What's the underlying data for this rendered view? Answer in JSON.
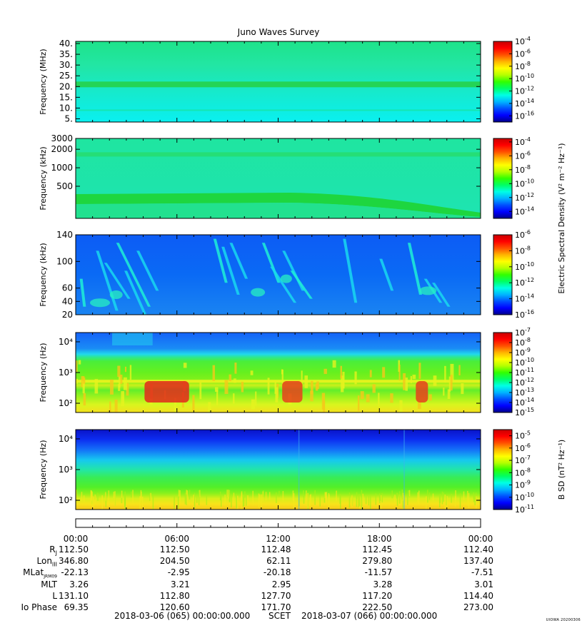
{
  "figure": {
    "title": "Juno Waves Survey",
    "credit": "UIOWA 20200306"
  },
  "colors": {
    "colormap": [
      "#00008c",
      "#0000ff",
      "#0050ff",
      "#00b4ff",
      "#00ffe6",
      "#00ff64",
      "#32ff00",
      "#b4ff00",
      "#ffff00",
      "#ffb400",
      "#ff5000",
      "#ff0000",
      "#c80000"
    ]
  },
  "chart_data": [
    {
      "type": "heatmap",
      "panel": "hfr-high",
      "ylabel": "Frequency (MHz)",
      "yscale": "linear",
      "ylim": [
        3.5,
        41
      ],
      "yticks": [
        5,
        10,
        15,
        20,
        25,
        30,
        35,
        40
      ],
      "ytick_labels": [
        "5.",
        "10.",
        "15.",
        "20.",
        "25.",
        "30.",
        "35.",
        "40."
      ],
      "colorbar": {
        "label": "",
        "log_range": [
          -17,
          -4
        ],
        "ticks": [
          -4,
          -6,
          -8,
          -10,
          -12,
          -14,
          -16
        ],
        "tick_base": "10"
      }
    },
    {
      "type": "heatmap",
      "panel": "hfr-low",
      "ylabel": "Frequency (kHz)",
      "yscale": "log",
      "ylim": [
        150,
        3000
      ],
      "yticks": [
        500,
        1000,
        2000,
        3000
      ],
      "ytick_labels": [
        "500",
        "1000",
        "2000",
        "3000"
      ],
      "colorbar": {
        "label": "",
        "log_range": [
          -15,
          -3.5
        ],
        "ticks": [
          -4,
          -6,
          -8,
          -10,
          -12,
          -14
        ],
        "tick_base": "10"
      }
    },
    {
      "type": "heatmap",
      "panel": "lfr-high",
      "ylabel": "Frequency (kHz)",
      "yscale": "linear",
      "ylim": [
        20,
        140
      ],
      "yticks": [
        20,
        40,
        60,
        100,
        140
      ],
      "ytick_labels": [
        "20",
        "40",
        "60",
        "100",
        "140"
      ],
      "colorbar": {
        "label": "Electric Spectral Density (V² m⁻² Hz⁻¹)",
        "log_range": [
          -16,
          -6
        ],
        "ticks": [
          -6,
          -8,
          -10,
          -12,
          -14,
          -16
        ],
        "tick_base": "10"
      }
    },
    {
      "type": "heatmap",
      "panel": "lfr-low-e",
      "ylabel": "Frequency (Hz)",
      "yscale": "log",
      "ylim": [
        50,
        20000
      ],
      "yticks": [
        100,
        1000,
        10000
      ],
      "ytick_labels": [
        "10²",
        "10³",
        "10⁴"
      ],
      "colorbar": {
        "label": "",
        "log_range": [
          -15,
          -7
        ],
        "ticks": [
          -7,
          -8,
          -9,
          -10,
          -11,
          -12,
          -13,
          -14,
          -15
        ],
        "tick_base": "10"
      }
    },
    {
      "type": "heatmap",
      "panel": "lfr-low-b",
      "ylabel": "Frequency (Hz)",
      "yscale": "log",
      "ylim": [
        50,
        20000
      ],
      "yticks": [
        100,
        1000,
        10000
      ],
      "ytick_labels": [
        "10²",
        "10³",
        "10⁴"
      ],
      "colorbar": {
        "label": "B SD (nT² Hz⁻¹)",
        "log_range": [
          -11,
          -4.5
        ],
        "ticks": [
          -5,
          -6,
          -7,
          -8,
          -9,
          -10,
          -11
        ],
        "tick_base": "10"
      }
    }
  ],
  "time_axis": {
    "ticks": [
      "00:00",
      "06:00",
      "12:00",
      "18:00",
      "00:00"
    ],
    "xlim_hours": [
      0,
      24
    ]
  },
  "ephemeris": {
    "rows": [
      {
        "label": "R",
        "sub": "J",
        "values": [
          "112.50",
          "112.50",
          "112.48",
          "112.45",
          "112.40"
        ]
      },
      {
        "label": "Lon",
        "sub": "III",
        "values": [
          "346.80",
          "204.50",
          "62.11",
          "279.80",
          "137.40"
        ]
      },
      {
        "label": "MLat",
        "sub": "JRM09",
        "values": [
          "-22.13",
          "-2.95",
          "-20.18",
          "-11.57",
          "-7.51"
        ]
      },
      {
        "label": "MLT",
        "sub": "",
        "values": [
          "3.26",
          "3.21",
          "2.95",
          "3.28",
          "3.01"
        ]
      },
      {
        "label": "L",
        "sub": "",
        "values": [
          "131.10",
          "112.80",
          "127.70",
          "117.20",
          "114.40"
        ]
      },
      {
        "label": "Io Phase",
        "sub": "",
        "values": [
          "69.35",
          "120.60",
          "171.70",
          "222.50",
          "273.00"
        ]
      }
    ]
  },
  "footer": {
    "start": "2018-03-06 (065) 00:00:00.000",
    "center": "SCET",
    "end": "2018-03-07 (066) 00:00:00.000"
  }
}
